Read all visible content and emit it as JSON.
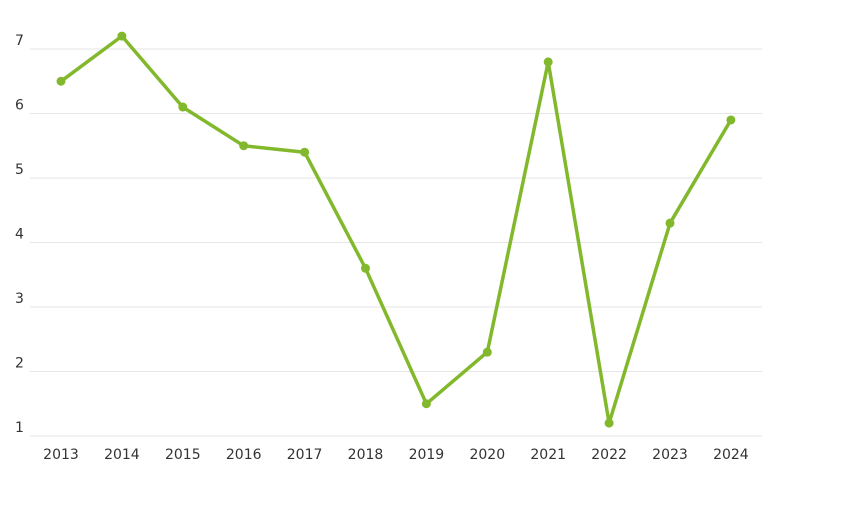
{
  "chart_data": {
    "type": "line",
    "title": "",
    "xlabel": "",
    "ylabel": "",
    "categories": [
      "2013",
      "2014",
      "2015",
      "2016",
      "2017",
      "2018",
      "2019",
      "2020",
      "2021",
      "2022",
      "2023",
      "2024"
    ],
    "series": [
      {
        "values": [
          6.5,
          7.2,
          6.1,
          5.5,
          5.4,
          3.6,
          1.5,
          2.3,
          6.8,
          1.2,
          4.3,
          5.9
        ],
        "color": "#82b92c"
      }
    ],
    "yticks": [
      1,
      2,
      3,
      4,
      5,
      6,
      7
    ],
    "ylim": [
      1,
      7.33
    ],
    "grid": true,
    "legend": "none",
    "gridColor": "#e6e6e6",
    "textColor": "#333333"
  }
}
